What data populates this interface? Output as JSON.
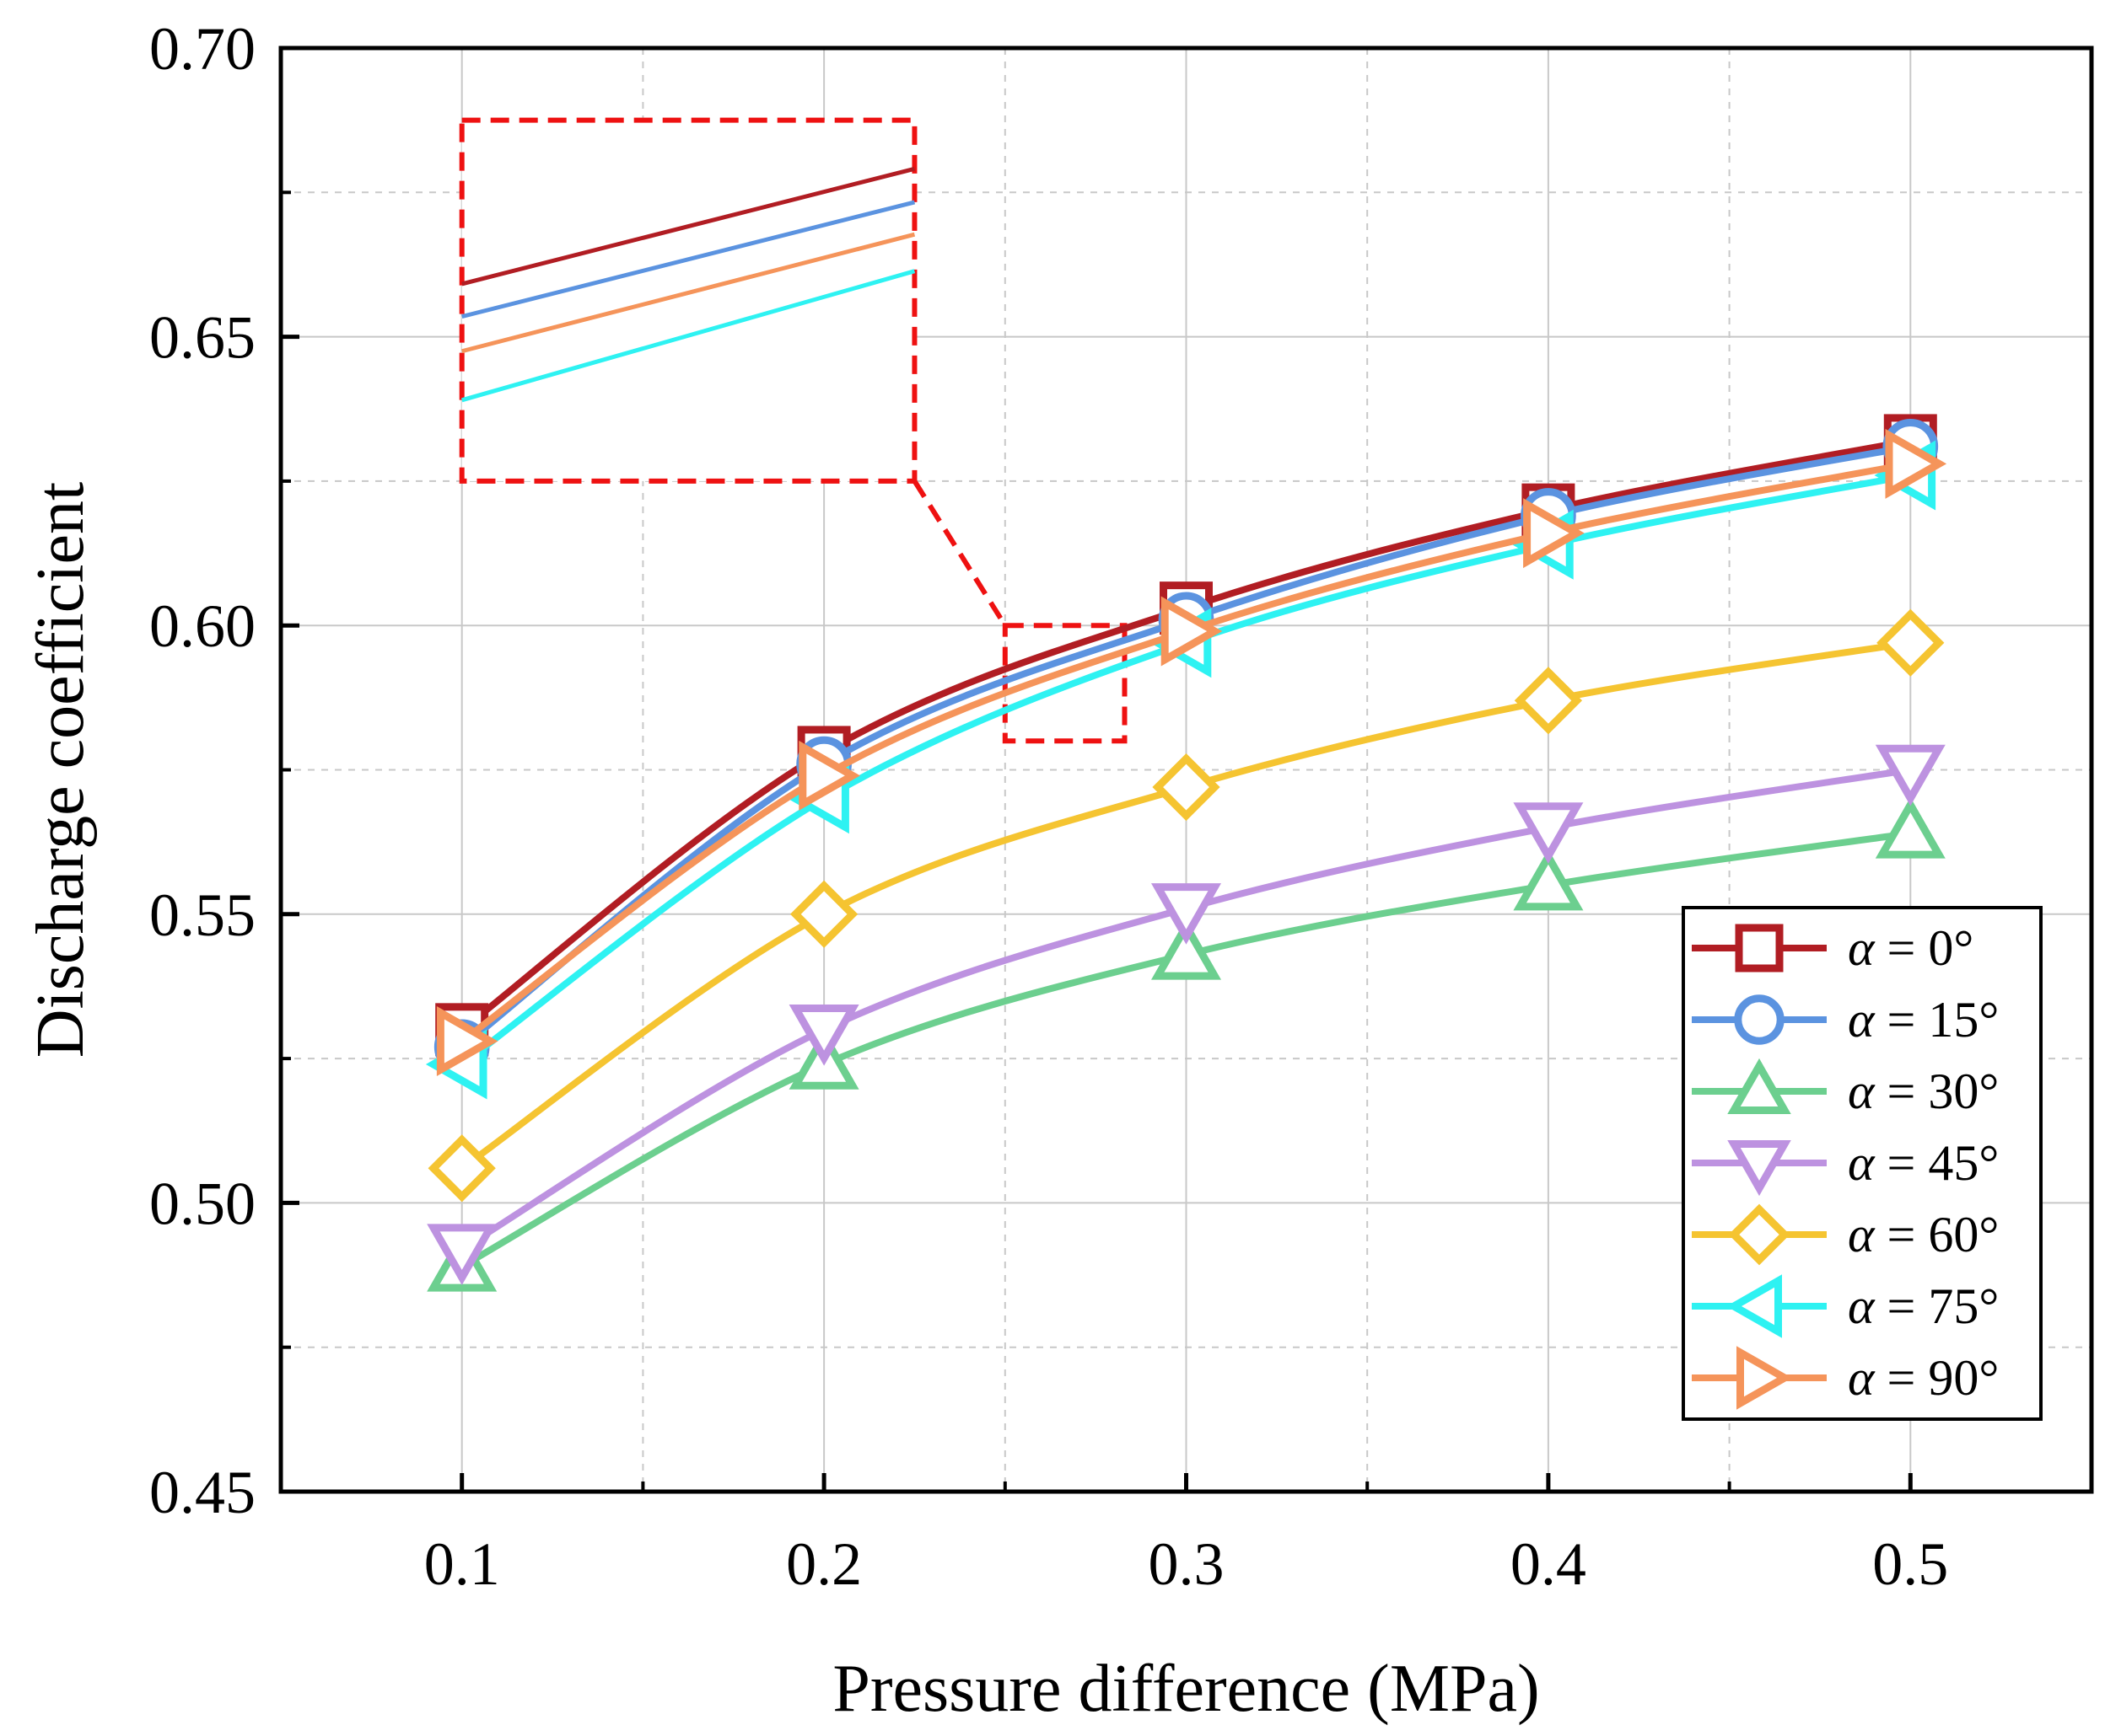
{
  "chart_data": {
    "type": "line",
    "title": "",
    "xlabel": "Pressure difference (MPa)",
    "ylabel": "Discharge coefficient",
    "xlim": [
      0.05,
      0.55
    ],
    "ylim": [
      0.45,
      0.7
    ],
    "x": [
      0.1,
      0.2,
      0.3,
      0.4,
      0.5
    ],
    "x_tick_labels": [
      "0.1",
      "0.2",
      "0.3",
      "0.4",
      "0.5"
    ],
    "y_ticks": [
      0.45,
      0.5,
      0.55,
      0.6,
      0.65,
      0.7
    ],
    "y_tick_labels": [
      "0.45",
      "0.50",
      "0.55",
      "0.60",
      "0.65",
      "0.70"
    ],
    "grid": true,
    "legend_position": "bottom-right",
    "series": [
      {
        "name": "α = 0°",
        "symbol": "α",
        "rest": " = 0°",
        "color": "#b11d23",
        "marker": "square",
        "values": [
          0.53,
          0.578,
          0.603,
          0.62,
          0.632
        ]
      },
      {
        "name": "α = 15°",
        "symbol": "α",
        "rest": " = 15°",
        "color": "#5b93e0",
        "marker": "circle",
        "values": [
          0.527,
          0.576,
          0.601,
          0.619,
          0.631
        ]
      },
      {
        "name": "α = 30°",
        "symbol": "α",
        "rest": " = 30°",
        "color": "#6ccf8f",
        "marker": "triangle-up",
        "values": [
          0.489,
          0.524,
          0.543,
          0.555,
          0.564
        ]
      },
      {
        "name": "α = 45°",
        "symbol": "α",
        "rest": " = 45°",
        "color": "#bd92e0",
        "marker": "triangle-down",
        "values": [
          0.492,
          0.53,
          0.551,
          0.565,
          0.575
        ]
      },
      {
        "name": "α = 60°",
        "symbol": "α",
        "rest": " = 60°",
        "color": "#f5c431",
        "marker": "diamond",
        "values": [
          0.506,
          0.55,
          0.572,
          0.587,
          0.597
        ]
      },
      {
        "name": "α = 75°",
        "symbol": "α",
        "rest": " = 75°",
        "color": "#2ef2f2",
        "marker": "triangle-left",
        "values": [
          0.524,
          0.57,
          0.597,
          0.614,
          0.626
        ]
      },
      {
        "name": "α = 90°",
        "symbol": "α",
        "rest": " = 90°",
        "color": "#f5945a",
        "marker": "triangle-right",
        "values": [
          0.528,
          0.574,
          0.599,
          0.616,
          0.628
        ]
      }
    ],
    "inset": {
      "description_region": {
        "x_range": [
          0.25,
          0.283
        ],
        "y_range": [
          0.58,
          0.6
        ]
      },
      "series_order": [
        "α = 0°",
        "α = 15°",
        "α = 90°",
        "α = 75°"
      ]
    }
  }
}
